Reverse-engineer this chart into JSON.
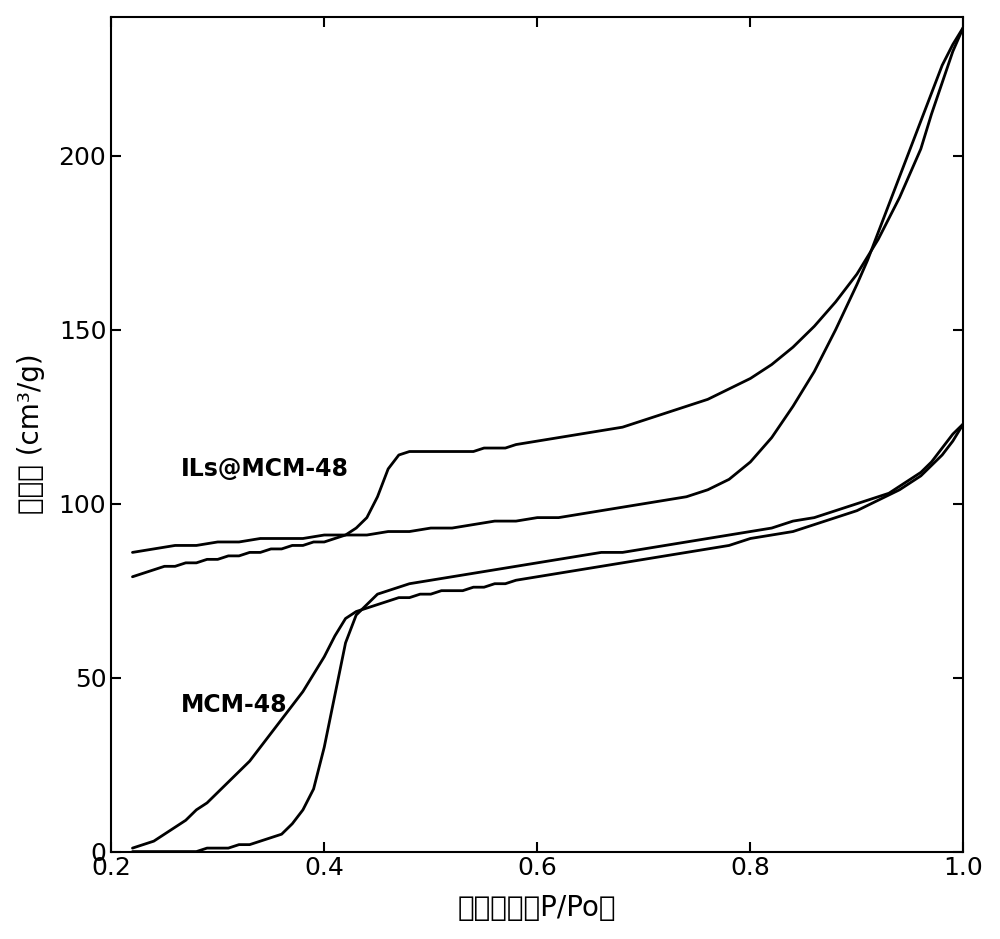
{
  "MCM48_adsorption_x": [
    0.22,
    0.23,
    0.24,
    0.25,
    0.26,
    0.27,
    0.28,
    0.29,
    0.3,
    0.31,
    0.32,
    0.33,
    0.34,
    0.35,
    0.36,
    0.37,
    0.38,
    0.39,
    0.4,
    0.41,
    0.42,
    0.43,
    0.44,
    0.45,
    0.46,
    0.47,
    0.48,
    0.49,
    0.5,
    0.51,
    0.52,
    0.53,
    0.54,
    0.55,
    0.56,
    0.57,
    0.58,
    0.6,
    0.62,
    0.64,
    0.66,
    0.68,
    0.7,
    0.72,
    0.74,
    0.76,
    0.78,
    0.8,
    0.82,
    0.84,
    0.86,
    0.88,
    0.9,
    0.92,
    0.94,
    0.96,
    0.97,
    0.98,
    0.99,
    1.0
  ],
  "MCM48_adsorption_y": [
    1,
    2,
    3,
    5,
    7,
    9,
    12,
    14,
    17,
    20,
    23,
    26,
    30,
    34,
    38,
    42,
    46,
    51,
    56,
    62,
    67,
    69,
    70,
    71,
    72,
    73,
    73,
    74,
    74,
    75,
    75,
    75,
    76,
    76,
    77,
    77,
    78,
    79,
    80,
    81,
    82,
    83,
    84,
    85,
    86,
    87,
    88,
    90,
    91,
    92,
    94,
    96,
    98,
    101,
    104,
    108,
    111,
    114,
    118,
    123
  ],
  "MCM48_desorption_x": [
    1.0,
    0.99,
    0.98,
    0.97,
    0.96,
    0.95,
    0.94,
    0.93,
    0.92,
    0.91,
    0.9,
    0.88,
    0.86,
    0.84,
    0.82,
    0.8,
    0.78,
    0.76,
    0.74,
    0.72,
    0.7,
    0.68,
    0.66,
    0.64,
    0.62,
    0.6,
    0.58,
    0.56,
    0.54,
    0.52,
    0.5,
    0.48,
    0.46,
    0.45,
    0.44,
    0.43,
    0.42,
    0.41,
    0.4,
    0.39,
    0.38,
    0.37,
    0.36,
    0.35,
    0.34,
    0.33,
    0.32,
    0.31,
    0.3,
    0.29,
    0.28,
    0.27,
    0.26,
    0.25,
    0.24,
    0.23,
    0.22
  ],
  "MCM48_desorption_y": [
    123,
    120,
    116,
    112,
    109,
    107,
    105,
    103,
    102,
    101,
    100,
    98,
    96,
    95,
    93,
    92,
    91,
    90,
    89,
    88,
    87,
    86,
    86,
    85,
    84,
    83,
    82,
    81,
    80,
    79,
    78,
    77,
    75,
    74,
    71,
    68,
    60,
    45,
    30,
    18,
    12,
    8,
    5,
    4,
    3,
    2,
    2,
    1,
    1,
    1,
    0,
    0,
    0,
    0,
    0,
    0,
    0
  ],
  "ILsMCM48_adsorption_x": [
    0.22,
    0.23,
    0.24,
    0.25,
    0.26,
    0.27,
    0.28,
    0.29,
    0.3,
    0.31,
    0.32,
    0.33,
    0.34,
    0.35,
    0.36,
    0.37,
    0.38,
    0.39,
    0.4,
    0.41,
    0.42,
    0.43,
    0.44,
    0.45,
    0.46,
    0.47,
    0.48,
    0.49,
    0.5,
    0.51,
    0.52,
    0.53,
    0.54,
    0.55,
    0.56,
    0.57,
    0.58,
    0.6,
    0.62,
    0.64,
    0.66,
    0.68,
    0.7,
    0.72,
    0.74,
    0.76,
    0.78,
    0.8,
    0.82,
    0.84,
    0.86,
    0.88,
    0.9,
    0.92,
    0.94,
    0.96,
    0.97,
    0.98,
    0.99,
    1.0
  ],
  "ILsMCM48_adsorption_y": [
    79,
    80,
    81,
    82,
    82,
    83,
    83,
    84,
    84,
    85,
    85,
    86,
    86,
    87,
    87,
    88,
    88,
    89,
    89,
    90,
    91,
    93,
    96,
    102,
    110,
    114,
    115,
    115,
    115,
    115,
    115,
    115,
    115,
    116,
    116,
    116,
    117,
    118,
    119,
    120,
    121,
    122,
    124,
    126,
    128,
    130,
    133,
    136,
    140,
    145,
    151,
    158,
    166,
    176,
    188,
    202,
    212,
    221,
    230,
    237
  ],
  "ILsMCM48_desorption_x": [
    1.0,
    0.99,
    0.98,
    0.97,
    0.96,
    0.95,
    0.94,
    0.93,
    0.92,
    0.91,
    0.9,
    0.88,
    0.86,
    0.84,
    0.82,
    0.8,
    0.78,
    0.76,
    0.74,
    0.72,
    0.7,
    0.68,
    0.66,
    0.64,
    0.62,
    0.6,
    0.58,
    0.56,
    0.54,
    0.52,
    0.5,
    0.48,
    0.46,
    0.44,
    0.42,
    0.4,
    0.38,
    0.36,
    0.34,
    0.32,
    0.3,
    0.28,
    0.26,
    0.24,
    0.22
  ],
  "ILsMCM48_desorption_y": [
    237,
    232,
    226,
    218,
    210,
    202,
    194,
    186,
    178,
    170,
    163,
    150,
    138,
    128,
    119,
    112,
    107,
    104,
    102,
    101,
    100,
    99,
    98,
    97,
    96,
    96,
    95,
    95,
    94,
    93,
    93,
    92,
    92,
    91,
    91,
    91,
    90,
    90,
    90,
    89,
    89,
    88,
    88,
    87,
    86
  ],
  "xlabel": "相对压力（P/Po）",
  "ylabel_part1": "吸附量",
  "ylabel_part2": "cm³/g",
  "label_ILs": "ILs@MCM-48",
  "label_MCM": "MCM-48",
  "xlim": [
    0.2,
    1.0
  ],
  "ylim": [
    0,
    240
  ],
  "xticks": [
    0.2,
    0.4,
    0.6,
    0.8,
    1.0
  ],
  "yticks": [
    0,
    50,
    100,
    150,
    200
  ],
  "line_color": "#000000",
  "line_width": 2.0,
  "bg_color": "#ffffff",
  "xlabel_fontsize": 20,
  "ylabel_fontsize": 20,
  "tick_fontsize": 18,
  "annotation_fontsize": 17
}
